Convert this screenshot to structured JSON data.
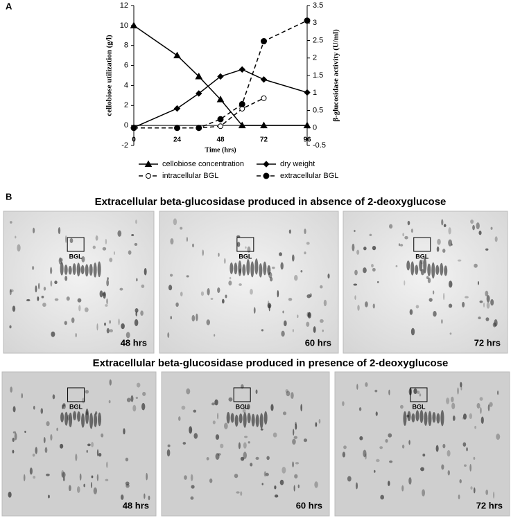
{
  "chart_data": {
    "type": "line",
    "xlabel": "Time (hrs)",
    "ylabel": "cellobiose utilization (g/l)",
    "y2label": "β-glucosidase activity (U/ml)",
    "x": [
      0,
      24,
      36,
      48,
      60,
      72,
      96
    ],
    "xlim": [
      0,
      96
    ],
    "xticks": [
      0,
      24,
      48,
      72,
      96
    ],
    "ylim": [
      -2,
      12
    ],
    "yticks": [
      -2,
      0,
      2,
      4,
      6,
      8,
      10,
      12
    ],
    "y2lim": [
      -0.5,
      3.5
    ],
    "y2ticks": [
      -0.5,
      0,
      0.5,
      1,
      1.5,
      2,
      2.5,
      3,
      3.5
    ],
    "legend": "bottom",
    "series": [
      {
        "name": "cellobiose concentration",
        "color": "#000000",
        "marker": "triangle",
        "dashed": false,
        "values": [
          10,
          7,
          4.9,
          2.6,
          0,
          0,
          0
        ]
      },
      {
        "name": "dry weight",
        "color": "#000000",
        "marker": "diamond",
        "dashed": false,
        "values": [
          -0.2,
          1.7,
          3.2,
          4.9,
          5.6,
          4.6,
          3.3
        ]
      },
      {
        "name": "intracellular BGL",
        "color": "#000000",
        "marker": "circle-open",
        "dashed": true,
        "axis": "y2",
        "values": [
          0,
          0,
          0,
          0.05,
          0.55,
          0.85,
          null
        ]
      },
      {
        "name": "extracellular BGL",
        "color": "#000000",
        "marker": "circle",
        "dashed": true,
        "axis": "y2",
        "values": [
          0,
          0,
          0,
          0.25,
          0.68,
          2.48,
          3.07
        ]
      }
    ]
  },
  "figure": {
    "panel_a_label": "A",
    "panel_b_label": "B",
    "gel_rows": [
      {
        "heading": "Extracellular beta-glucosidase produced in absence of 2-deoxyglucose",
        "gels": [
          {
            "time": "48 hrs",
            "band": "BGL"
          },
          {
            "time": "60 hrs",
            "band": "BGL"
          },
          {
            "time": "72 hrs",
            "band": "BGL"
          }
        ]
      },
      {
        "heading": "Extracellular beta-glucosidase produced in presence of 2-deoxyglucose",
        "gels": [
          {
            "time": "48 hrs",
            "band": "BGL"
          },
          {
            "time": "60 hrs",
            "band": "BGL"
          },
          {
            "time": "72 hrs",
            "band": "BGL"
          }
        ]
      }
    ]
  }
}
